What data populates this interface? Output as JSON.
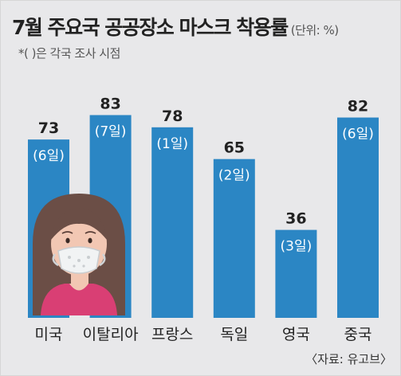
{
  "header": {
    "title": "7월 주요국 공공장소 마스크 착용률",
    "unit": "(단위: %)",
    "note": "*(  )은 각국 조사 시점"
  },
  "source": "〈자료: 유고브〉",
  "colors": {
    "background": "#e8e8ea",
    "bar": "#2b86c4",
    "text": "#222222",
    "date_label": "#ffffff"
  },
  "illustration": {
    "icon": "woman-wearing-mask-icon"
  },
  "chart_data": {
    "type": "bar",
    "categories": [
      "미국",
      "이탈리아",
      "프랑스",
      "독일",
      "영국",
      "중국"
    ],
    "values": [
      73,
      83,
      78,
      65,
      36,
      82
    ],
    "date_labels": [
      "(6일)",
      "(7일)",
      "(1일)",
      "(2일)",
      "(3일)",
      "(6일)"
    ],
    "title": "7월 주요국 공공장소 마스크 착용률",
    "ylabel": "",
    "xlabel": "",
    "ylim": [
      0,
      90
    ],
    "grid": false,
    "legend": "none"
  }
}
